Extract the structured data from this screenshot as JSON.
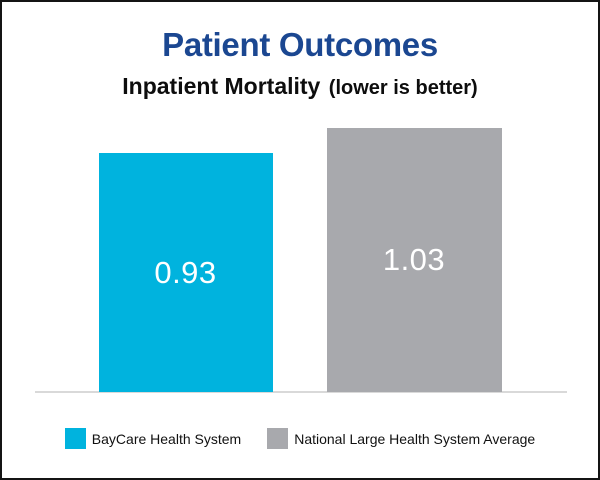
{
  "header": {
    "title": "Patient Outcomes",
    "subtitle": "Inpatient Mortality",
    "subtitle_note": "(lower is better)"
  },
  "chart_data": {
    "type": "bar",
    "title": "Patient Outcomes",
    "subtitle": "Inpatient Mortality (lower is better)",
    "categories": [
      "BayCare Health System",
      "National Large Health System Average"
    ],
    "values": [
      0.93,
      1.03
    ],
    "value_labels": [
      "0.93",
      "1.03"
    ],
    "colors": [
      "#00b3de",
      "#a8a9ad"
    ],
    "ylim": [
      0,
      1.13
    ],
    "grid": false,
    "legend_position": "bottom",
    "annotation": "lower is better"
  },
  "legend": {
    "items": [
      {
        "label": "BayCare Health System",
        "color": "#00b3de"
      },
      {
        "label": "National Large Health System Average",
        "color": "#a8a9ad"
      }
    ]
  },
  "colors": {
    "title_blue": "#1b4791",
    "baycare_cyan": "#00b3de",
    "national_gray": "#a8a9ad",
    "axis_line": "#d9d9d9",
    "card_border": "#141414",
    "value_text": "#ffffff",
    "subtitle_text": "#0d0d0d"
  }
}
